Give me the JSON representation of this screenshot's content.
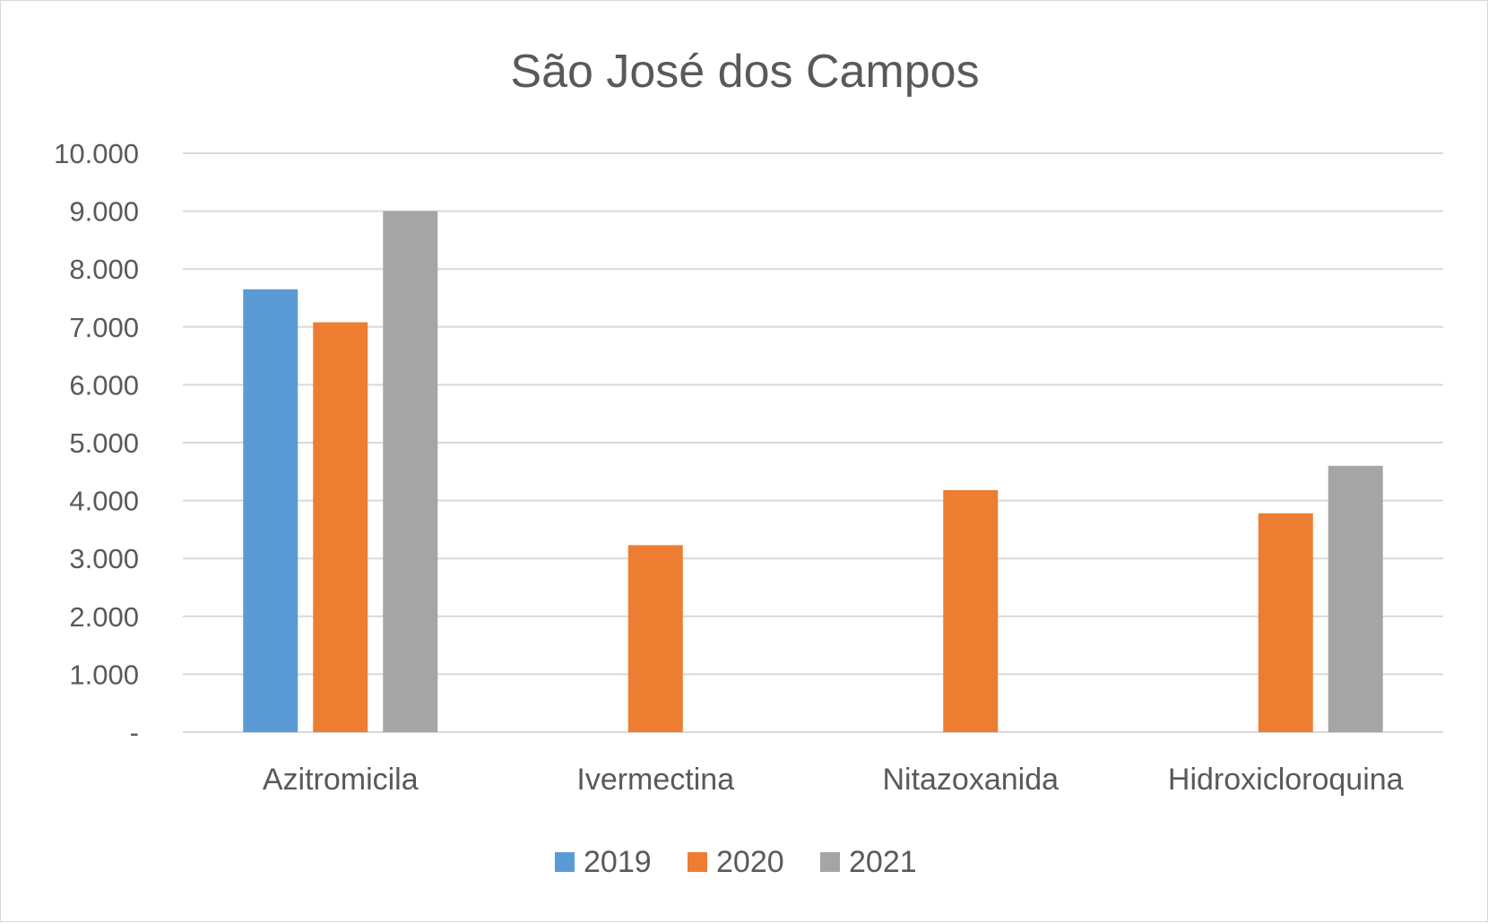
{
  "chart_data": {
    "type": "bar",
    "title": "São José dos Campos",
    "xlabel": "",
    "ylabel": "",
    "ylim": [
      0,
      10000
    ],
    "yticks": [
      {
        "value": 0,
        "label": "-"
      },
      {
        "value": 1000,
        "label": "1.000"
      },
      {
        "value": 2000,
        "label": "2.000"
      },
      {
        "value": 3000,
        "label": "3.000"
      },
      {
        "value": 4000,
        "label": "4.000"
      },
      {
        "value": 5000,
        "label": "5.000"
      },
      {
        "value": 6000,
        "label": "6.000"
      },
      {
        "value": 7000,
        "label": "7.000"
      },
      {
        "value": 8000,
        "label": "8.000"
      },
      {
        "value": 9000,
        "label": "9.000"
      },
      {
        "value": 10000,
        "label": "10.000"
      }
    ],
    "categories": [
      "Azitromicila",
      "Ivermectina",
      "Nitazoxanida",
      "Hidroxicloroquina"
    ],
    "series": [
      {
        "name": "2019",
        "color": "#5b9bd5",
        "values": [
          7650,
          null,
          null,
          null
        ]
      },
      {
        "name": "2020",
        "color": "#ed7d31",
        "values": [
          7080,
          3230,
          4180,
          3780
        ]
      },
      {
        "name": "2021",
        "color": "#a5a5a5",
        "values": [
          9000,
          null,
          null,
          4600
        ]
      }
    ],
    "grid": true,
    "legend_position": "bottom"
  }
}
